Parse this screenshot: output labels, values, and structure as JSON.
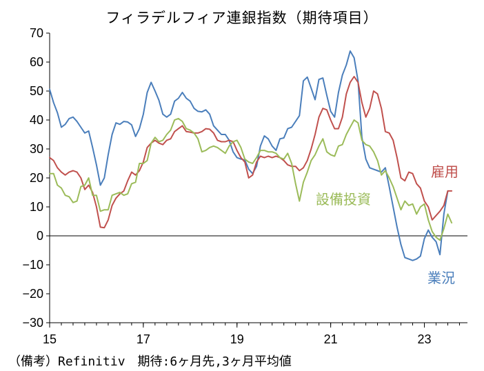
{
  "chart_data": {
    "type": "line",
    "title": "フィラデルフィア連銀指数（期待項目）",
    "source_note": "（備考）Refinitiv　期待:6ヶ月先,3ヶ月平均値",
    "xlabel": "",
    "ylabel": "",
    "x_start": 2015.0,
    "x_step": 0.0833333,
    "xlim": [
      2015.0,
      2023.92
    ],
    "ylim": [
      -30,
      70
    ],
    "y_ticks": [
      -30,
      -20,
      -10,
      0,
      10,
      20,
      30,
      40,
      50,
      60,
      70
    ],
    "x_ticks": [
      {
        "value": 2015,
        "label": "15"
      },
      {
        "value": 2017,
        "label": "17"
      },
      {
        "value": 2019,
        "label": "19"
      },
      {
        "value": 2021,
        "label": "21"
      },
      {
        "value": 2023,
        "label": "23"
      }
    ],
    "grid": false,
    "zero_line": true,
    "series": [
      {
        "name": "業況",
        "color": "#4a7ebb",
        "values": [
          50.6,
          46.0,
          42.5,
          37.5,
          38.5,
          40.5,
          41.0,
          39.5,
          37.5,
          35.5,
          36.2,
          30.5,
          24.5,
          17.5,
          20.0,
          28.0,
          35.0,
          39.0,
          38.5,
          39.5,
          39.3,
          38.3,
          34.3,
          37.0,
          42.0,
          49.5,
          53.0,
          50.0,
          46.8,
          42.0,
          41.0,
          42.0,
          46.5,
          47.5,
          49.5,
          47.5,
          46.5,
          44.0,
          43.0,
          42.8,
          43.5,
          42.0,
          38.0,
          36.5,
          35.0,
          35.0,
          33.0,
          29.0,
          27.0,
          26.5,
          26.2,
          23.0,
          21.5,
          24.0,
          31.0,
          34.5,
          33.5,
          31.0,
          29.5,
          33.5,
          33.8,
          37.0,
          37.5,
          39.5,
          41.5,
          53.5,
          54.8,
          51.0,
          47.0,
          54.0,
          54.5,
          48.5,
          43.0,
          41.0,
          49.5,
          55.5,
          59.0,
          63.8,
          61.5,
          53.5,
          34.0,
          26.5,
          23.5,
          23.0,
          22.5,
          22.0,
          23.5,
          17.0,
          10.0,
          3.0,
          -3.0,
          -7.5,
          -8.0,
          -8.5,
          -8.0,
          -7.0,
          -1.0,
          2.0,
          -0.5,
          -2.0,
          -6.5,
          7.5,
          15.5
        ]
      },
      {
        "name": "雇用",
        "color": "#c0504d",
        "values": [
          27.0,
          26.0,
          23.5,
          22.0,
          21.0,
          22.0,
          22.5,
          22.0,
          20.0,
          16.0,
          17.5,
          15.0,
          10.0,
          3.0,
          2.8,
          5.5,
          10.5,
          13.0,
          14.5,
          15.5,
          19.0,
          22.0,
          21.0,
          22.5,
          25.5,
          30.5,
          32.0,
          33.0,
          32.0,
          31.5,
          33.0,
          33.5,
          36.0,
          37.0,
          38.0,
          36.0,
          35.8,
          35.5,
          35.5,
          36.0,
          37.0,
          36.8,
          35.5,
          33.0,
          32.5,
          32.5,
          33.0,
          32.5,
          29.5,
          27.0,
          25.5,
          20.0,
          21.0,
          25.5,
          27.5,
          27.0,
          27.5,
          27.0,
          27.5,
          27.0,
          26.0,
          24.5,
          24.0,
          24.0,
          22.5,
          23.5,
          26.0,
          30.0,
          35.0,
          41.0,
          44.0,
          43.5,
          40.0,
          37.0,
          37.0,
          41.0,
          49.0,
          53.0,
          55.0,
          53.0,
          46.0,
          41.0,
          44.0,
          50.0,
          49.0,
          44.0,
          36.0,
          35.5,
          33.0,
          27.0,
          20.0,
          19.0,
          22.0,
          21.5,
          18.0,
          16.5,
          12.0,
          10.0,
          5.5,
          7.0,
          8.5,
          10.5,
          15.5,
          15.5
        ]
      },
      {
        "name": "設備投資",
        "color": "#9bbb59",
        "values": [
          21.5,
          21.5,
          17.5,
          16.5,
          14.0,
          13.5,
          11.5,
          12.0,
          17.0,
          17.5,
          20.0,
          14.0,
          14.0,
          8.5,
          9.0,
          9.0,
          14.0,
          14.5,
          15.0,
          14.0,
          14.5,
          18.0,
          18.5,
          25.0,
          25.0,
          26.0,
          32.0,
          34.0,
          32.5,
          33.0,
          35.0,
          36.5,
          40.0,
          40.5,
          39.5,
          37.0,
          36.5,
          35.5,
          33.5,
          29.0,
          29.5,
          30.5,
          31.0,
          30.5,
          29.5,
          28.5,
          31.0,
          32.5,
          33.0,
          30.5,
          26.5,
          25.5,
          25.0,
          27.0,
          29.5,
          29.5,
          29.0,
          29.0,
          28.5,
          27.0,
          26.5,
          28.5,
          25.0,
          18.0,
          12.0,
          18.5,
          22.0,
          26.0,
          28.0,
          31.0,
          33.5,
          29.0,
          28.0,
          27.5,
          31.0,
          31.5,
          35.0,
          37.5,
          40.0,
          39.0,
          33.0,
          31.5,
          31.0,
          29.0,
          26.0,
          21.0,
          22.5,
          20.0,
          17.0,
          13.0,
          9.0,
          12.0,
          10.5,
          11.0,
          7.5,
          10.0,
          11.0,
          5.5,
          1.5,
          -0.5,
          -1.5,
          2.5,
          7.5,
          4.5
        ]
      }
    ],
    "series_label_positions": [
      "bottom-right",
      "right",
      "middle-right"
    ]
  }
}
